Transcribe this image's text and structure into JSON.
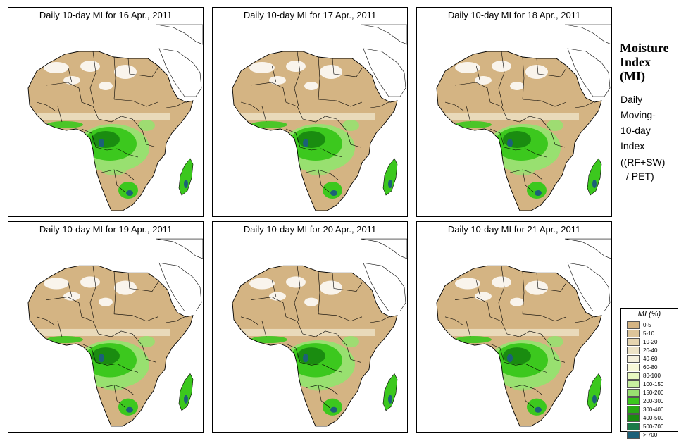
{
  "panels": [
    {
      "title": "Daily 10-day MI for  16 Apr., 2011",
      "variant": 0
    },
    {
      "title": "Daily 10-day MI for  17 Apr., 2011",
      "variant": 1
    },
    {
      "title": "Daily 10-day MI for  18 Apr., 2011",
      "variant": 2
    },
    {
      "title": "Daily 10-day MI for  19 Apr., 2011",
      "variant": 3
    },
    {
      "title": "Daily 10-day MI for  20 Apr., 2011",
      "variant": 4
    },
    {
      "title": "Daily 10-day MI for  21 Apr., 2011",
      "variant": 5
    }
  ],
  "side": {
    "title_line1": "Moisture",
    "title_line2": "Index",
    "title_line3": "(MI)",
    "desc_line1": "Daily",
    "desc_line2": "Moving-",
    "desc_line3": "10-day",
    "desc_line4": "Index",
    "formula_line1": "((RF+SW)",
    "formula_line2": "/ PET)"
  },
  "legend": {
    "title": "MI (%)",
    "items": [
      {
        "label": "0-5",
        "color": "#d4b483"
      },
      {
        "label": "5-10",
        "color": "#ddc59a"
      },
      {
        "label": "10-20",
        "color": "#e6d5b0"
      },
      {
        "label": "20-40",
        "color": "#eee4c8"
      },
      {
        "label": "40-60",
        "color": "#f5f0dc"
      },
      {
        "label": "60-80",
        "color": "#f8f8d8"
      },
      {
        "label": "80-100",
        "color": "#e8f8c0"
      },
      {
        "label": "100-150",
        "color": "#c8f0a0"
      },
      {
        "label": "150-200",
        "color": "#98e070"
      },
      {
        "label": "200-300",
        "color": "#3cc81e"
      },
      {
        "label": "300-400",
        "color": "#28a814"
      },
      {
        "label": "400-500",
        "color": "#1a8c10"
      },
      {
        "label": "500-700",
        "color": "#1c7a48"
      },
      {
        "label": "> 700",
        "color": "#1c6078"
      }
    ]
  },
  "colors": {
    "land_dry": "#d4b483",
    "land_mid": "#eee4c8",
    "green_light": "#98e070",
    "green_mid": "#3cc81e",
    "green_dark": "#1a8c10",
    "blue": "#1c6078",
    "outline": "#000000",
    "no_data": "#ffffff"
  }
}
